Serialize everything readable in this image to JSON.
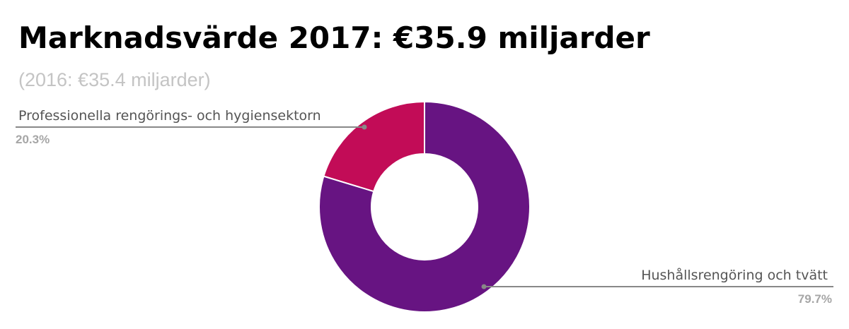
{
  "title": "Marknadsvärde 2017: €35.9 miljarder",
  "subtitle": "(2016: €35.4 miljarder)",
  "chart_data": {
    "type": "pie",
    "style": "donut",
    "title": "Marknadsvärde 2017: €35.9 miljarder",
    "subtitle": "(2016: €35.4 miljarder)",
    "slices": [
      {
        "label": "Professionella rengörings- och hygiensektorn",
        "value": 20.3,
        "value_label": "20.3%",
        "color": "#c20c57"
      },
      {
        "label": "Hushållsrengöring och tvätt",
        "value": 79.7,
        "value_label": "79.7%",
        "color": "#671482"
      }
    ],
    "units": "%",
    "legend": "none",
    "labels": "outside, with leader lines"
  }
}
